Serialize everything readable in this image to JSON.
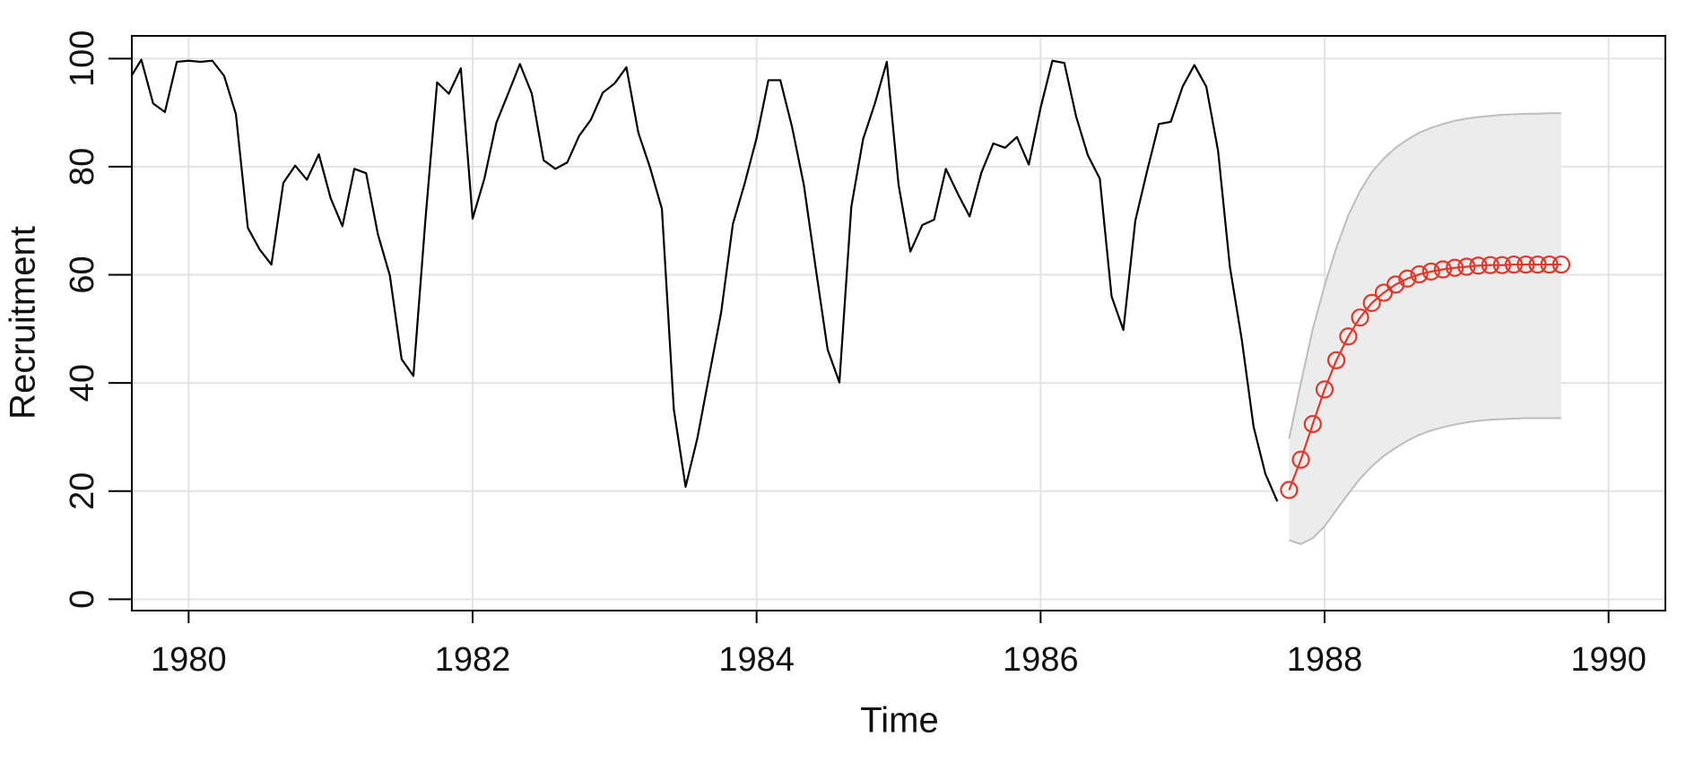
{
  "chart_data": {
    "type": "line",
    "xlabel": "Time",
    "ylabel": "Recruitment",
    "xlim": [
      1979.6,
      1990.4
    ],
    "ylim": [
      -2.1,
      104.2
    ],
    "xticks": [
      1980,
      1982,
      1984,
      1986,
      1988,
      1990
    ],
    "yticks": [
      0,
      20,
      40,
      60,
      80,
      100
    ],
    "grid": true,
    "series": [
      {
        "color": "#000000",
        "x": [
          1979.583,
          1979.667,
          1979.75,
          1979.833,
          1979.917,
          1980,
          1980.083,
          1980.167,
          1980.25,
          1980.333,
          1980.417,
          1980.5,
          1980.583,
          1980.667,
          1980.75,
          1980.833,
          1980.917,
          1981,
          1981.083,
          1981.167,
          1981.25,
          1981.333,
          1981.417,
          1981.5,
          1981.583,
          1981.667,
          1981.75,
          1981.833,
          1981.917,
          1982,
          1982.083,
          1982.167,
          1982.25,
          1982.333,
          1982.417,
          1982.5,
          1982.583,
          1982.667,
          1982.75,
          1982.833,
          1982.917,
          1983,
          1983.083,
          1983.167,
          1983.25,
          1983.333,
          1983.417,
          1983.5,
          1983.583,
          1983.667,
          1983.75,
          1983.833,
          1983.917,
          1984,
          1984.083,
          1984.167,
          1984.25,
          1984.333,
          1984.417,
          1984.5,
          1984.583,
          1984.667,
          1984.75,
          1984.833,
          1984.917,
          1985,
          1985.083,
          1985.167,
          1985.25,
          1985.333,
          1985.417,
          1985.5,
          1985.583,
          1985.667,
          1985.75,
          1985.833,
          1985.917,
          1986,
          1986.083,
          1986.167,
          1986.25,
          1986.333,
          1986.417,
          1986.5,
          1986.583,
          1986.667,
          1986.75,
          1986.833,
          1986.917,
          1987,
          1987.083,
          1987.167,
          1987.25,
          1987.333,
          1987.417,
          1987.5,
          1987.583,
          1987.667
        ],
        "values": [
          96.2,
          99.8,
          91.7,
          90.1,
          99.4,
          99.6,
          99.4,
          99.6,
          96.8,
          89.7,
          68.7,
          64.7,
          61.9,
          77.0,
          80.2,
          77.6,
          82.3,
          74.2,
          69.0,
          79.6,
          78.8,
          67.5,
          59.9,
          44.4,
          41.3,
          70.0,
          95.6,
          93.5,
          98.2,
          70.4,
          77.8,
          88.1,
          93.5,
          99.0,
          93.5,
          81.2,
          79.6,
          80.8,
          85.7,
          88.7,
          93.7,
          95.4,
          98.4,
          86.3,
          79.8,
          72.2,
          35.1,
          20.8,
          29.8,
          41.5,
          53.0,
          69.4,
          77.0,
          85.3,
          96.0,
          96.0,
          87.3,
          76.6,
          61.1,
          46.2,
          40.1,
          72.6,
          85.1,
          91.7,
          99.4,
          76.6,
          64.3,
          69.2,
          70.2,
          79.6,
          75.0,
          70.8,
          78.9,
          84.3,
          83.5,
          85.5,
          80.4,
          90.9,
          99.6,
          99.2,
          89.3,
          82.1,
          77.8,
          56.0,
          49.8,
          70.0,
          79.2,
          87.9,
          88.3,
          94.8,
          98.8,
          94.8,
          82.9,
          61.5,
          48.0,
          31.9,
          23.2,
          18.1
        ]
      },
      {
        "color": "#e0382a",
        "band_color": "#ececec",
        "band_edge": "#bdbdbd",
        "markers": "circle",
        "x": [
          1987.75,
          1987.833,
          1987.917,
          1988,
          1988.083,
          1988.167,
          1988.25,
          1988.333,
          1988.417,
          1988.5,
          1988.583,
          1988.667,
          1988.75,
          1988.833,
          1988.917,
          1989,
          1989.083,
          1989.167,
          1989.25,
          1989.333,
          1989.417,
          1989.5,
          1989.583,
          1989.667
        ],
        "values": [
          20.2,
          25.8,
          32.4,
          38.8,
          44.2,
          48.6,
          52.1,
          54.8,
          56.7,
          58.2,
          59.3,
          60.1,
          60.6,
          61.0,
          61.3,
          61.5,
          61.7,
          61.8,
          61.8,
          61.9,
          61.9,
          61.9,
          61.9,
          61.9
        ],
        "upper": [
          29.7,
          40,
          50,
          58,
          65,
          71,
          75.5,
          79,
          81.5,
          83.5,
          85,
          86.3,
          87.2,
          87.9,
          88.5,
          88.9,
          89.2,
          89.4,
          89.6,
          89.7,
          89.8,
          89.8,
          89.9,
          89.9
        ],
        "lower": [
          10.9,
          10.2,
          11.3,
          13.5,
          16.5,
          19.5,
          22.3,
          24.6,
          26.5,
          28,
          29.3,
          30.4,
          31.2,
          31.8,
          32.3,
          32.7,
          33,
          33.2,
          33.3,
          33.4,
          33.5,
          33.5,
          33.5,
          33.5
        ]
      }
    ]
  }
}
